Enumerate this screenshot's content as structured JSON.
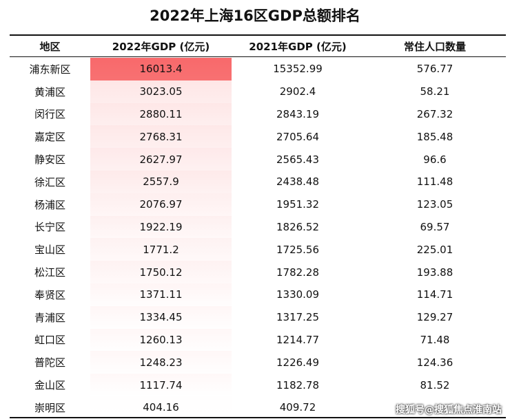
{
  "title": "2022年上海16区GDP总额排名",
  "headers": [
    "地区",
    "2022年GDP (亿元)",
    "2021年GDP (亿元)",
    "常住人口数量"
  ],
  "rows": [
    {
      "district": "浦东新区",
      "gdp2022": "16013.4",
      "gdp2021": "15352.99",
      "population": "576.77",
      "shade": 1.0
    },
    {
      "district": "黄浦区",
      "gdp2022": "3023.05",
      "gdp2021": "2902.4",
      "population": "58.21",
      "shade": 0.17
    },
    {
      "district": "闵行区",
      "gdp2022": "2880.11",
      "gdp2021": "2843.19",
      "population": "267.32",
      "shade": 0.16
    },
    {
      "district": "嘉定区",
      "gdp2022": "2768.31",
      "gdp2021": "2705.64",
      "population": "185.48",
      "shade": 0.155
    },
    {
      "district": "静安区",
      "gdp2022": "2627.97",
      "gdp2021": "2565.43",
      "population": "96.6",
      "shade": 0.145
    },
    {
      "district": "徐汇区",
      "gdp2022": "2557.9",
      "gdp2021": "2438.48",
      "population": "111.48",
      "shade": 0.14
    },
    {
      "district": "杨浦区",
      "gdp2022": "2076.97",
      "gdp2021": "1951.32",
      "population": "123.05",
      "shade": 0.11
    },
    {
      "district": "长宁区",
      "gdp2022": "1922.19",
      "gdp2021": "1826.52",
      "population": "69.57",
      "shade": 0.1
    },
    {
      "district": "宝山区",
      "gdp2022": "1771.2",
      "gdp2021": "1725.56",
      "population": "225.01",
      "shade": 0.09
    },
    {
      "district": "松江区",
      "gdp2022": "1750.12",
      "gdp2021": "1782.28",
      "population": "193.88",
      "shade": 0.09
    },
    {
      "district": "奉贤区",
      "gdp2022": "1371.11",
      "gdp2021": "1330.09",
      "population": "114.71",
      "shade": 0.065
    },
    {
      "district": "青浦区",
      "gdp2022": "1334.45",
      "gdp2021": "1317.25",
      "population": "129.27",
      "shade": 0.06
    },
    {
      "district": "虹口区",
      "gdp2022": "1260.13",
      "gdp2021": "1214.77",
      "population": "71.48",
      "shade": 0.055
    },
    {
      "district": "普陀区",
      "gdp2022": "1248.23",
      "gdp2021": "1226.49",
      "population": "124.36",
      "shade": 0.055
    },
    {
      "district": "金山区",
      "gdp2022": "1117.74",
      "gdp2021": "1182.78",
      "population": "81.52",
      "shade": 0.045
    },
    {
      "district": "崇明区",
      "gdp2022": "404.16",
      "gdp2021": "409.72",
      "population": "",
      "shade": 0.01
    }
  ],
  "highlight_color": "#f8696b",
  "watermark": "搜狐号@搜狐焦点淮南站"
}
